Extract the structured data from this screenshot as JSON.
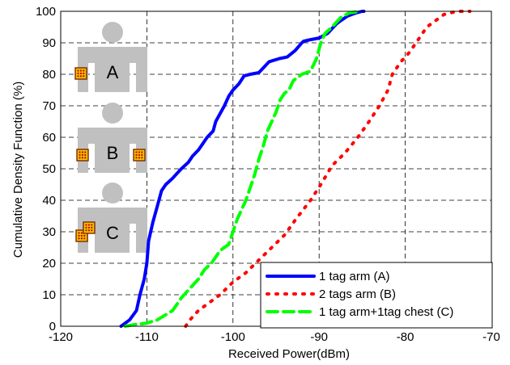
{
  "chart_data": {
    "type": "line",
    "title": "",
    "xlabel": "Received Power(dBm)",
    "ylabel": "Cumulative Density Function (%)",
    "xlim": [
      -120,
      -70
    ],
    "ylim": [
      0,
      100
    ],
    "xticks": [
      "-120",
      "-110",
      "-100",
      "-90",
      "-80",
      "-70"
    ],
    "yticks": [
      "0",
      "10",
      "20",
      "30",
      "40",
      "50",
      "60",
      "70",
      "80",
      "90",
      "100"
    ],
    "grid": true,
    "legend_position": "bottom-right",
    "series": [
      {
        "name": "1 tag arm (A)",
        "color": "#0000ff",
        "dash": "solid",
        "x": [
          -113,
          -112,
          -111.2,
          -110.8,
          -110.3,
          -110,
          -109.8,
          -109.3,
          -108.8,
          -108.3,
          -107.8,
          -107,
          -106.5,
          -106,
          -105.2,
          -104.7,
          -104,
          -103.5,
          -103,
          -102.3,
          -102,
          -101.5,
          -101,
          -100.5,
          -100,
          -99.3,
          -98.7,
          -98,
          -97,
          -95.8,
          -94.6,
          -93.7,
          -92.8,
          -92,
          -91.8,
          -91,
          -90,
          -89,
          -88,
          -87.5,
          -86.7,
          -85.7,
          -85,
          -84.8
        ],
        "y": [
          0,
          2,
          5,
          10,
          15,
          20,
          27,
          33,
          38,
          43,
          45,
          47,
          48.5,
          50,
          52,
          54,
          56,
          58,
          60,
          62,
          65,
          67.5,
          70,
          73,
          75,
          77,
          79.5,
          80,
          80.5,
          84,
          85,
          85.5,
          87.5,
          90,
          90.5,
          91,
          91.5,
          93,
          96,
          97,
          98.5,
          99.5,
          100,
          100
        ]
      },
      {
        "name": "2 tags arm (B)",
        "color": "#ff0000",
        "dash": "dotted",
        "x": [
          -105.5,
          -105,
          -104,
          -103,
          -101.5,
          -100,
          -98.5,
          -97,
          -95.5,
          -94,
          -92.7,
          -91,
          -89.8,
          -88.5,
          -87,
          -85.5,
          -84.2,
          -83,
          -82,
          -81.5,
          -80.5,
          -79.5,
          -78.5,
          -77.5,
          -76.5,
          -75.5,
          -74,
          -72.5
        ],
        "y": [
          0,
          2,
          5,
          7,
          10,
          14,
          17,
          21,
          25,
          29,
          34,
          40,
          45,
          51,
          55,
          60,
          65,
          70,
          75,
          80,
          84,
          87,
          91,
          95,
          97,
          99,
          100,
          100
        ]
      },
      {
        "name": "1 tag arm+1tag chest (C)",
        "color": "#00ff00",
        "dash": "dashed",
        "x": [
          -112.5,
          -111.5,
          -110,
          -108.8,
          -107,
          -106,
          -105,
          -104,
          -103.3,
          -102.5,
          -101.5,
          -100.5,
          -100,
          -99.5,
          -99,
          -98.5,
          -98,
          -97.5,
          -97,
          -96.5,
          -96,
          -95.5,
          -95,
          -94.5,
          -94,
          -93.5,
          -93,
          -92,
          -91,
          -90.3,
          -89.8,
          -89.3,
          -88.5,
          -87.5,
          -86.5,
          -85.2
        ],
        "y": [
          0,
          0.5,
          1,
          2,
          5,
          9,
          12,
          15,
          18,
          20,
          24,
          26,
          30,
          34,
          37,
          40,
          44,
          48,
          53,
          57,
          62,
          65,
          68,
          72,
          74,
          75,
          78,
          80,
          81,
          85,
          90,
          93,
          95,
          98,
          99.5,
          100
        ]
      }
    ],
    "annotations": {
      "figure_labels": [
        "A",
        "B",
        "C"
      ]
    }
  }
}
